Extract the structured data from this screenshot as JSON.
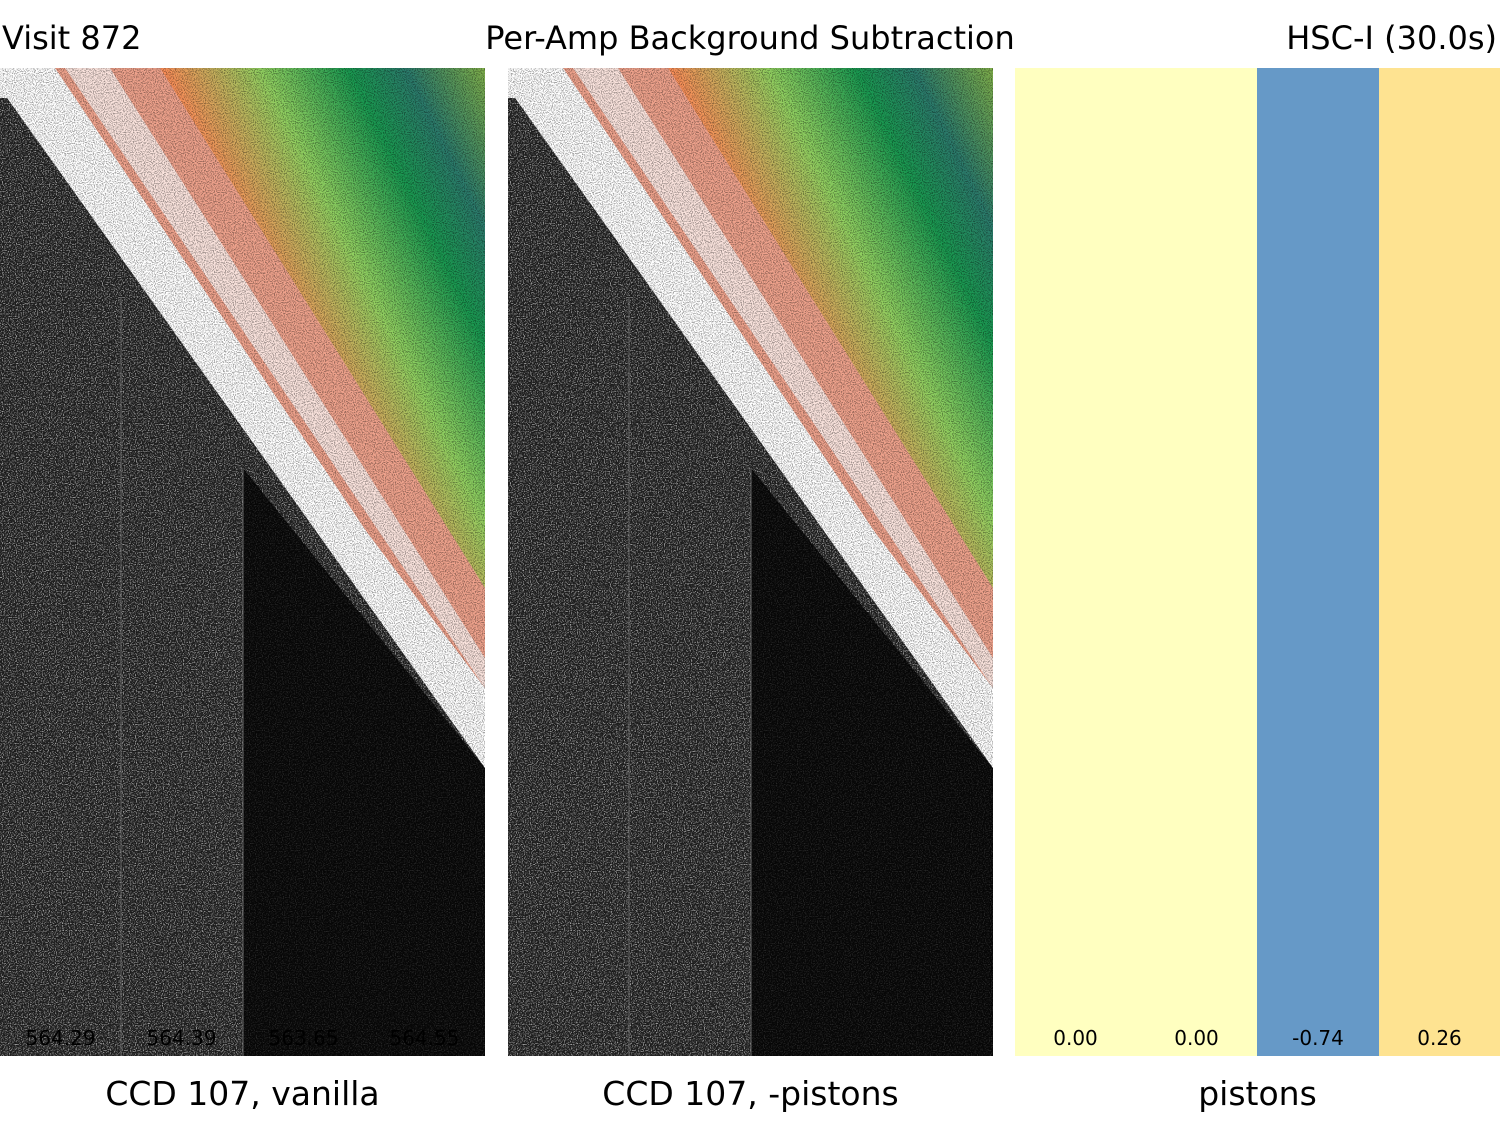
{
  "header": {
    "left": "Visit 872",
    "center": "Per-Amp Background Subtraction",
    "right": "HSC-I (30.0s)"
  },
  "panels": [
    {
      "caption": "CCD 107, vanilla",
      "amp_values": [
        "564.29",
        "564.39",
        "563.65",
        "564.55"
      ]
    },
    {
      "caption": "CCD 107, -pistons",
      "amp_values": [
        "",
        "",
        "",
        ""
      ]
    },
    {
      "caption": "pistons",
      "pistons": [
        {
          "value": "0.00",
          "color": "#ffffc0"
        },
        {
          "value": "0.00",
          "color": "#ffffc0"
        },
        {
          "value": "-0.74",
          "color": "#6699c7"
        },
        {
          "value": "0.26",
          "color": "#fee391"
        }
      ]
    }
  ],
  "colormap": [
    "#000000",
    "#ffffff",
    "#d73027",
    "#fc8d59",
    "#91cf60",
    "#1a9850",
    "#2b4c9b",
    "#d9b526"
  ]
}
